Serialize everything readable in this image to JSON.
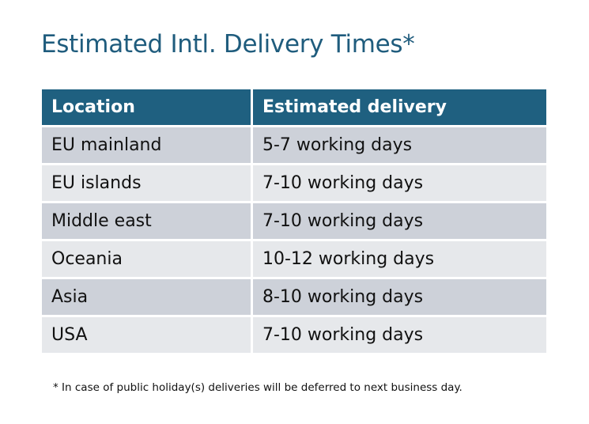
{
  "title": "Estimated Intl. Delivery Times*",
  "table": {
    "headers": [
      "Location",
      "Estimated delivery"
    ],
    "rows": [
      [
        "EU mainland",
        "5-7 working days"
      ],
      [
        "EU islands",
        "7-10 working days"
      ],
      [
        "Middle east",
        "7-10 working days"
      ],
      [
        "Oceania",
        "10-12 working days"
      ],
      [
        "Asia",
        "8-10 working days"
      ],
      [
        "USA",
        "7-10 working days"
      ]
    ]
  },
  "footnote": "* In case of public holiday(s) deliveries will be deferred to next business day.",
  "colors": {
    "header": "#1f6080",
    "title": "#1f5c7d",
    "row_odd": "#cdd1d9",
    "row_even": "#e6e8eb"
  }
}
